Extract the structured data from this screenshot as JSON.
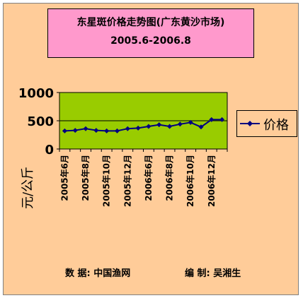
{
  "title_line1": "东星斑价格走势图(广东黄沙市场)",
  "title_line2": "2005.6-2006.8",
  "ylabel": "元/公斤",
  "footer": {
    "source": "数  据:  中国渔网",
    "editor": "编  制:  吴湘生"
  },
  "colors": {
    "background": "#ffcc99",
    "plot_area": "#99cc00",
    "title_box": "#ff99cc",
    "series": "#000080"
  },
  "chart_data": {
    "type": "line",
    "title": "东星斑价格走势图(广东黄沙市场) 2005.6-2006.8",
    "xlabel": "",
    "ylabel": "元/公斤",
    "ylim": [
      0,
      1000
    ],
    "yticks": [
      0,
      500,
      1000
    ],
    "grid": "horizontal major gridline at 500",
    "legend_position": "right",
    "x": [
      "2005年6月",
      "",
      "2005年8月",
      "",
      "2005年10月",
      "",
      "2005年12月",
      "",
      "2006年6月",
      "",
      "2006年8月",
      "",
      "2006年10月",
      "",
      "2006年12月",
      ""
    ],
    "series": [
      {
        "name": "价格",
        "values": [
          320,
          330,
          360,
          330,
          320,
          320,
          360,
          370,
          400,
          430,
          400,
          440,
          470,
          390,
          520,
          520
        ]
      }
    ]
  }
}
